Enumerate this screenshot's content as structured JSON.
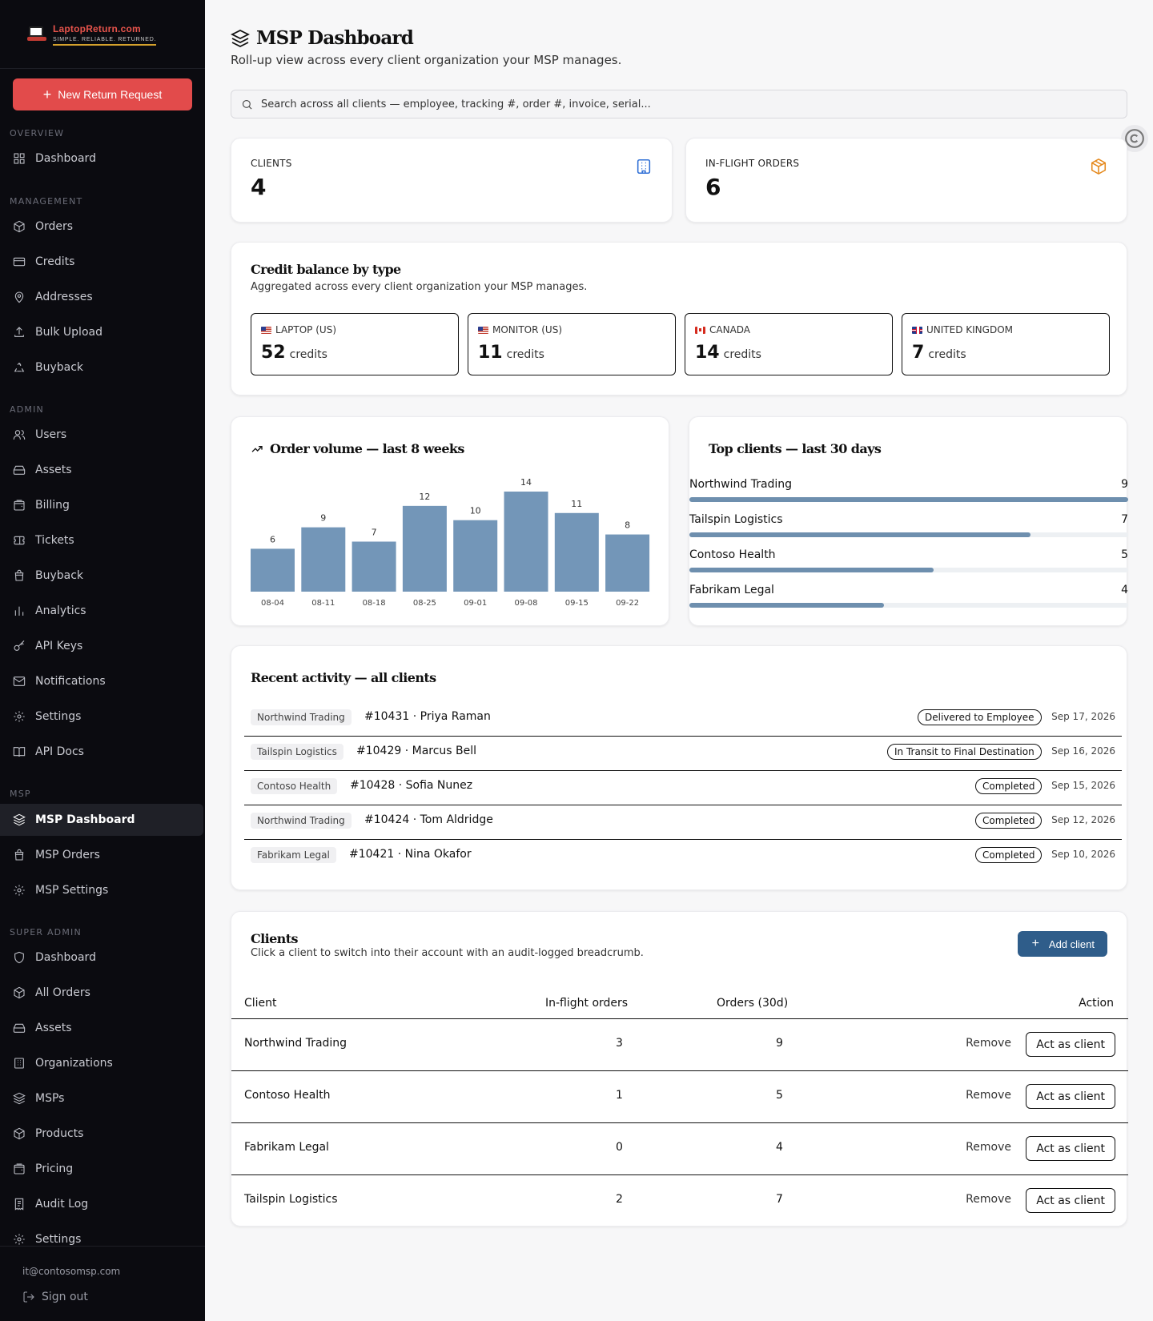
{
  "app": {
    "brand_name": "LaptopReturn.com",
    "brand_tagline": "SIMPLE. RELIABLE. RETURNED.",
    "new_request_label": "New Return Request"
  },
  "sidebar": {
    "sections": {
      "overview": "OVERVIEW",
      "management": "MANAGEMENT",
      "admin": "ADMIN",
      "msp": "MSP",
      "super_admin": "SUPER ADMIN"
    },
    "overview": [
      {
        "label": "Dashboard",
        "icon": "grid-icon"
      }
    ],
    "management": [
      {
        "label": "Orders",
        "icon": "package-icon"
      },
      {
        "label": "Credits",
        "icon": "credit-card-icon"
      },
      {
        "label": "Addresses",
        "icon": "map-pin-icon"
      },
      {
        "label": "Bulk Upload",
        "icon": "upload-icon"
      },
      {
        "label": "Buyback",
        "icon": "recycle-icon"
      }
    ],
    "admin": [
      {
        "label": "Users",
        "icon": "users-icon"
      },
      {
        "label": "Assets",
        "icon": "hard-drive-icon"
      },
      {
        "label": "Billing",
        "icon": "wallet-icon"
      },
      {
        "label": "Tickets",
        "icon": "ticket-icon"
      },
      {
        "label": "Buyback",
        "icon": "bag-icon"
      },
      {
        "label": "Analytics",
        "icon": "bar-chart-icon"
      },
      {
        "label": "API Keys",
        "icon": "key-icon"
      },
      {
        "label": "Notifications",
        "icon": "mail-icon"
      },
      {
        "label": "Settings",
        "icon": "gear-icon"
      },
      {
        "label": "API Docs",
        "icon": "book-icon"
      }
    ],
    "msp": [
      {
        "label": "MSP Dashboard",
        "icon": "layers-icon",
        "active": true
      },
      {
        "label": "MSP Orders",
        "icon": "bag-icon"
      },
      {
        "label": "MSP Settings",
        "icon": "gear-icon"
      }
    ],
    "super_admin": [
      {
        "label": "Dashboard",
        "icon": "shield-icon"
      },
      {
        "label": "All Orders",
        "icon": "package-icon"
      },
      {
        "label": "Assets",
        "icon": "hard-drive-icon"
      },
      {
        "label": "Organizations",
        "icon": "building-icon"
      },
      {
        "label": "MSPs",
        "icon": "layers-icon"
      },
      {
        "label": "Products",
        "icon": "package-icon"
      },
      {
        "label": "Pricing",
        "icon": "wallet-icon"
      },
      {
        "label": "Audit Log",
        "icon": "receipt-icon"
      },
      {
        "label": "Settings",
        "icon": "gear-icon"
      }
    ],
    "user_email": "it@contosomsp.com",
    "sign_out_label": "Sign out"
  },
  "header": {
    "title": "MSP Dashboard",
    "subtitle": "Roll-up view across every client organization your MSP manages.",
    "search_placeholder": "Search across all clients — employee, tracking #, order #, invoice, serial..."
  },
  "stats": {
    "clients": {
      "label": "CLIENTS",
      "value": "4",
      "icon": "building-icon",
      "color": "#2f6fd6"
    },
    "inflight": {
      "label": "IN-FLIGHT ORDERS",
      "value": "6",
      "icon": "package-icon",
      "color": "#e58a1f"
    }
  },
  "credit_balance": {
    "title": "Credit balance by type",
    "subtitle": "Aggregated across every client organization your MSP manages.",
    "unit": "credits",
    "items": [
      {
        "label": "LAPTOP (US)",
        "value": "52",
        "flag": "us"
      },
      {
        "label": "MONITOR (US)",
        "value": "11",
        "flag": "us"
      },
      {
        "label": "CANADA",
        "value": "14",
        "flag": "ca"
      },
      {
        "label": "UNITED KINGDOM",
        "value": "7",
        "flag": "uk"
      }
    ]
  },
  "order_volume": {
    "title": "Order volume — last 8 weeks",
    "bar_color": "#7396b8"
  },
  "chart_data": {
    "type": "bar",
    "title": "Order volume — last 8 weeks",
    "categories": [
      "08-04",
      "08-11",
      "08-18",
      "08-25",
      "09-01",
      "09-08",
      "09-15",
      "09-22"
    ],
    "values": [
      6,
      9,
      7,
      12,
      10,
      14,
      11,
      8
    ],
    "xlabel": "",
    "ylabel": "",
    "grid": false,
    "legend": "none"
  },
  "top_clients": {
    "title": "Top clients — last 30 days",
    "bar_color": "#6e8fae",
    "max": 9,
    "items": [
      {
        "name": "Northwind Trading",
        "value": 9
      },
      {
        "name": "Tailspin Logistics",
        "value": 7
      },
      {
        "name": "Contoso Health",
        "value": 5
      },
      {
        "name": "Fabrikam Legal",
        "value": 4
      }
    ]
  },
  "activity": {
    "title": "Recent activity — all clients",
    "items": [
      {
        "org": "Northwind Trading",
        "order": "#10431 · Priya Raman",
        "status": "Delivered to Employee",
        "date": "Sep 17, 2026"
      },
      {
        "org": "Tailspin Logistics",
        "order": "#10429 · Marcus Bell",
        "status": "In Transit to Final Destination",
        "date": "Sep 16, 2026"
      },
      {
        "org": "Contoso Health",
        "order": "#10428 · Sofia Nunez",
        "status": "Completed",
        "date": "Sep 15, 2026"
      },
      {
        "org": "Northwind Trading",
        "order": "#10424 · Tom Aldridge",
        "status": "Completed",
        "date": "Sep 12, 2026"
      },
      {
        "org": "Fabrikam Legal",
        "order": "#10421 · Nina Okafor",
        "status": "Completed",
        "date": "Sep 10, 2026"
      }
    ]
  },
  "clients": {
    "title": "Clients",
    "subtitle": "Click a client to switch into their account with an audit-logged breadcrumb.",
    "add_label": "Add client",
    "columns": {
      "client": "Client",
      "inflight": "In-flight orders",
      "orders30": "Orders (30d)",
      "action": "Action"
    },
    "remove_label": "Remove",
    "act_label": "Act as client",
    "rows": [
      {
        "name": "Northwind Trading",
        "inflight": "3",
        "orders30": "9"
      },
      {
        "name": "Contoso Health",
        "inflight": "1",
        "orders30": "5"
      },
      {
        "name": "Fabrikam Legal",
        "inflight": "0",
        "orders30": "4"
      },
      {
        "name": "Tailspin Logistics",
        "inflight": "2",
        "orders30": "7"
      }
    ]
  }
}
